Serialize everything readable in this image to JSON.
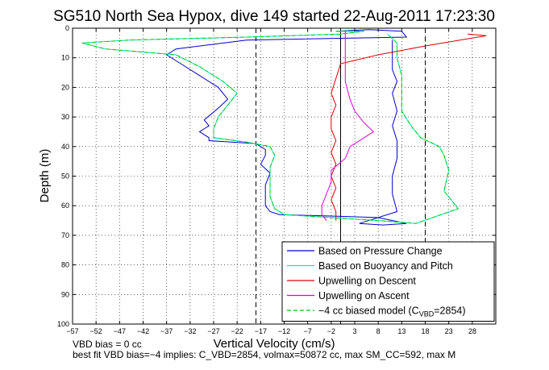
{
  "chart_data": {
    "type": "line",
    "title": "SG510 North Sea Hypox, dive 149 started 22-Aug-2011 17:23:30",
    "xlabel": "Vertical Velocity (cm/s)",
    "ylabel": "Depth (m)",
    "xlim": [
      -57,
      33
    ],
    "ylim": [
      0,
      100
    ],
    "y_reversed": true,
    "grid": "dotted",
    "legend_position": "bottom-right",
    "x_ticks": [
      -57,
      -52,
      -47,
      -42,
      -37,
      -32,
      -27,
      -22,
      -17,
      -12,
      -7,
      -2,
      3,
      8,
      13,
      18,
      23,
      28
    ],
    "x_tick_labels": [
      "−57",
      "−52",
      "−47",
      "−42",
      "−37",
      "−32",
      "−27",
      "−22",
      "−17",
      "−12",
      "−7",
      "−2",
      "3",
      "8",
      "13",
      "18",
      "23",
      "28"
    ],
    "y_ticks": [
      0,
      10,
      20,
      30,
      40,
      50,
      60,
      70,
      80,
      90,
      100
    ],
    "vertical_lines": [
      {
        "x": -18,
        "style": "dashed"
      },
      {
        "x": 0,
        "style": "solid"
      },
      {
        "x": 18,
        "style": "dashed"
      }
    ],
    "legend_label_sub": "VBD",
    "series": [
      {
        "name": "Based on Pressure Change",
        "color": "#0000cc",
        "style": "solid",
        "points": [
          [
            -1,
            1
          ],
          [
            6,
            0.5
          ],
          [
            13,
            1
          ],
          [
            14,
            3
          ],
          [
            -20,
            4
          ],
          [
            -35,
            7
          ],
          [
            -37,
            9
          ],
          [
            -34,
            12
          ],
          [
            -30,
            16
          ],
          [
            -26,
            20
          ],
          [
            -24,
            24
          ],
          [
            -26,
            27
          ],
          [
            -29,
            31
          ],
          [
            -28,
            33
          ],
          [
            -30,
            35
          ],
          [
            -28,
            37
          ],
          [
            -28,
            38
          ],
          [
            -18,
            39
          ],
          [
            -16,
            41
          ],
          [
            -16,
            43
          ],
          [
            -17,
            46
          ],
          [
            -15,
            49
          ],
          [
            -16,
            53
          ],
          [
            -16,
            57
          ],
          [
            -16,
            60
          ],
          [
            -15,
            62
          ],
          [
            -13,
            63
          ],
          [
            -2,
            63.5
          ],
          [
            8,
            64
          ],
          [
            14,
            66
          ],
          [
            9,
            66.5
          ],
          [
            4,
            66
          ],
          [
            12,
            62
          ],
          [
            11,
            56
          ],
          [
            11,
            50
          ],
          [
            12,
            44
          ],
          [
            12,
            38
          ],
          [
            11,
            33
          ],
          [
            12,
            28
          ],
          [
            11,
            22
          ],
          [
            12,
            18
          ],
          [
            11,
            14
          ],
          [
            11,
            10
          ],
          [
            11,
            7
          ],
          [
            11,
            4
          ]
        ]
      },
      {
        "name": "Based on Buoyancy and Pitch",
        "color": "#00e5e5",
        "style": "solid",
        "points": [
          [
            -1,
            1
          ],
          [
            5,
            1
          ],
          [
            0,
            2
          ],
          [
            -20,
            3
          ],
          [
            -45,
            4
          ],
          [
            -55,
            5
          ],
          [
            -50,
            7
          ],
          [
            -35,
            9
          ],
          [
            -30,
            13
          ],
          [
            -25,
            18
          ],
          [
            -22,
            22
          ],
          [
            -24,
            26
          ],
          [
            -26,
            30
          ],
          [
            -27,
            34
          ],
          [
            -27,
            37
          ],
          [
            -20,
            38.5
          ],
          [
            -15,
            40
          ],
          [
            -14,
            43
          ],
          [
            -15,
            47
          ],
          [
            -15,
            52
          ],
          [
            -15,
            57
          ],
          [
            -14,
            61
          ],
          [
            -12,
            63
          ],
          [
            -2,
            64
          ],
          [
            8,
            65
          ],
          [
            16,
            66
          ],
          [
            25,
            61
          ],
          [
            22,
            55
          ],
          [
            23,
            48
          ],
          [
            22,
            43
          ],
          [
            21,
            40
          ],
          [
            17,
            37
          ],
          [
            15,
            33
          ],
          [
            13,
            28
          ],
          [
            13,
            22
          ],
          [
            13,
            16
          ],
          [
            12,
            10
          ],
          [
            12,
            5
          ],
          [
            10,
            2
          ]
        ]
      },
      {
        "name": "Upwelling on Descent",
        "color": "#dd0000",
        "style": "solid",
        "points": [
          [
            27,
            2
          ],
          [
            31,
            2.5
          ],
          [
            18,
            6
          ],
          [
            8,
            9
          ],
          [
            0,
            12
          ],
          [
            -1,
            17
          ],
          [
            -2,
            22
          ],
          [
            -1,
            26
          ],
          [
            -2,
            30
          ],
          [
            -2,
            34
          ],
          [
            -1,
            38
          ],
          [
            -2,
            42
          ],
          [
            -1,
            46
          ],
          [
            -2,
            50
          ],
          [
            -1,
            54
          ],
          [
            -2,
            58
          ],
          [
            -1,
            62
          ],
          [
            -1,
            65
          ]
        ]
      },
      {
        "name": "Upwelling on Ascent",
        "color": "#dd00dd",
        "style": "solid",
        "points": [
          [
            1,
            1
          ],
          [
            1,
            6
          ],
          [
            1,
            12
          ],
          [
            1,
            18
          ],
          [
            2,
            24
          ],
          [
            3,
            28
          ],
          [
            5,
            32
          ],
          [
            7,
            35
          ],
          [
            5,
            37
          ],
          [
            2,
            40
          ],
          [
            1,
            44
          ],
          [
            -2,
            48
          ],
          [
            -2,
            52
          ],
          [
            -3,
            56
          ],
          [
            -4,
            60
          ],
          [
            -4,
            63
          ],
          [
            -3,
            65
          ]
        ]
      },
      {
        "name": "−4 cc biased model (C",
        "color": "#00cc00",
        "style": "dashed",
        "legend_suffix": "=2854)",
        "points": [
          [
            -1,
            1
          ],
          [
            5,
            1
          ],
          [
            0,
            2
          ],
          [
            -20,
            3
          ],
          [
            -45,
            4
          ],
          [
            -55,
            5
          ],
          [
            -50,
            7
          ],
          [
            -35,
            9
          ],
          [
            -30,
            13
          ],
          [
            -25,
            18
          ],
          [
            -22,
            22
          ],
          [
            -24,
            26
          ],
          [
            -26,
            30
          ],
          [
            -27,
            34
          ],
          [
            -27,
            37
          ],
          [
            -20,
            38.5
          ],
          [
            -15,
            40
          ],
          [
            -14,
            43
          ],
          [
            -15,
            47
          ],
          [
            -15,
            52
          ],
          [
            -15,
            57
          ],
          [
            -14,
            61
          ],
          [
            -12,
            63
          ],
          [
            -2,
            64
          ],
          [
            8,
            65
          ],
          [
            16,
            66
          ],
          [
            25,
            61
          ],
          [
            22,
            55
          ],
          [
            23,
            48
          ],
          [
            22,
            43
          ],
          [
            21,
            40
          ],
          [
            17,
            37
          ],
          [
            15,
            33
          ],
          [
            13,
            28
          ],
          [
            13,
            22
          ],
          [
            13,
            16
          ],
          [
            12,
            10
          ],
          [
            12,
            5
          ],
          [
            10,
            2
          ]
        ]
      }
    ]
  },
  "footer": {
    "line1": "VBD bias = 0 cc",
    "line2": "best fit VBD bias=−4 implies: C_VBD=2854, volmax=50872 cc, max SM_CC=592, max M"
  }
}
